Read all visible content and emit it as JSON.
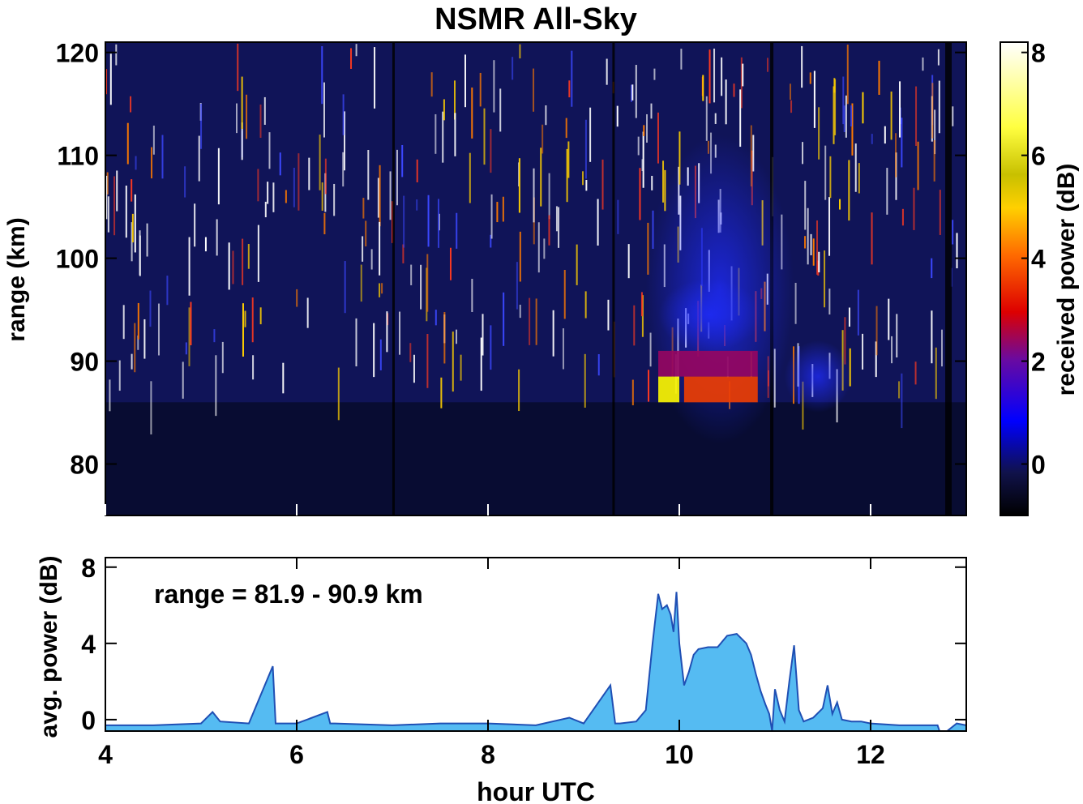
{
  "chart_data": [
    {
      "type": "heatmap",
      "title": "NSMR All-Sky",
      "xlabel": "",
      "ylabel": "range (km)",
      "xlim": [
        4,
        13
      ],
      "ylim": [
        75,
        121
      ],
      "y_ticks": [
        80,
        90,
        100,
        110,
        120
      ],
      "colorbar": {
        "label": "received power (dB)",
        "range": [
          -1,
          8.2
        ],
        "ticks": [
          0,
          2,
          4,
          6,
          8
        ],
        "colormap": [
          "#000000",
          "#10124a",
          "#0000ff",
          "#6a0aa0",
          "#dd0000",
          "#ff6a00",
          "#ffd000",
          "#ffff00",
          "#ffffff"
        ]
      },
      "hotspots": [
        {
          "x0": 9.78,
          "x1": 10.0,
          "y0": 86,
          "y1": 88.5,
          "power_db": 6.2
        },
        {
          "x0": 10.05,
          "x1": 10.82,
          "y0": 86,
          "y1": 88.5,
          "power_db": 3.6
        },
        {
          "x0": 9.78,
          "x1": 10.82,
          "y0": 88.5,
          "y1": 91,
          "power_db": 2.4
        },
        {
          "x0": 9.78,
          "x1": 10.85,
          "y0": 91,
          "y1": 98,
          "power_db": 1.0
        },
        {
          "x0": 9.65,
          "x1": 11.2,
          "y0": 82,
          "y1": 112,
          "power_db": 0.3
        },
        {
          "x0": 11.1,
          "x1": 11.8,
          "y0": 85,
          "y1": 92,
          "power_db": 0.2
        }
      ]
    },
    {
      "type": "area",
      "annotation": "range = 81.9 - 90.9 km",
      "xlabel": "hour UTC",
      "ylabel": "avg. power (dB)",
      "xlim": [
        4,
        13
      ],
      "ylim": [
        -0.6,
        8.5
      ],
      "x_ticks": [
        4,
        6,
        8,
        10,
        12
      ],
      "y_ticks": [
        0,
        4,
        8
      ],
      "fill_color": "#55bbf2",
      "line_color": "#1f4fb4",
      "x": [
        4.0,
        4.5,
        5.0,
        5.12,
        5.2,
        5.5,
        5.75,
        5.78,
        5.85,
        6.0,
        6.32,
        6.35,
        6.4,
        7.0,
        7.5,
        8.0,
        8.5,
        8.85,
        9.0,
        9.28,
        9.33,
        9.38,
        9.55,
        9.65,
        9.72,
        9.78,
        9.82,
        9.87,
        9.91,
        9.94,
        9.97,
        10.0,
        10.05,
        10.1,
        10.15,
        10.2,
        10.3,
        10.4,
        10.5,
        10.6,
        10.7,
        10.75,
        10.8,
        10.85,
        10.9,
        10.94,
        10.97,
        11.0,
        11.05,
        11.1,
        11.15,
        11.2,
        11.25,
        11.3,
        11.4,
        11.5,
        11.55,
        11.6,
        11.65,
        11.7,
        11.8,
        11.9,
        12.0,
        12.3,
        12.5,
        12.7,
        12.72,
        12.8,
        12.9,
        13.0
      ],
      "values": [
        -0.3,
        -0.3,
        -0.2,
        0.4,
        -0.1,
        -0.2,
        2.8,
        -0.2,
        -0.2,
        -0.2,
        0.4,
        -0.2,
        -0.2,
        -0.3,
        -0.2,
        -0.2,
        -0.3,
        0.1,
        -0.2,
        1.8,
        -0.2,
        -0.2,
        -0.1,
        0.5,
        4.0,
        6.6,
        5.8,
        6.0,
        5.5,
        4.6,
        6.7,
        4.0,
        1.8,
        2.5,
        3.4,
        3.7,
        3.8,
        3.8,
        4.4,
        4.5,
        4.0,
        3.4,
        2.4,
        1.5,
        0.8,
        0.3,
        -0.6,
        1.6,
        0.5,
        -0.1,
        2.0,
        3.9,
        0.5,
        -0.1,
        0.1,
        0.6,
        1.8,
        0.3,
        0.9,
        0.0,
        -0.1,
        -0.1,
        -0.2,
        -0.3,
        -0.3,
        -0.3,
        -0.6,
        -0.6,
        -0.2,
        -0.3
      ]
    }
  ]
}
